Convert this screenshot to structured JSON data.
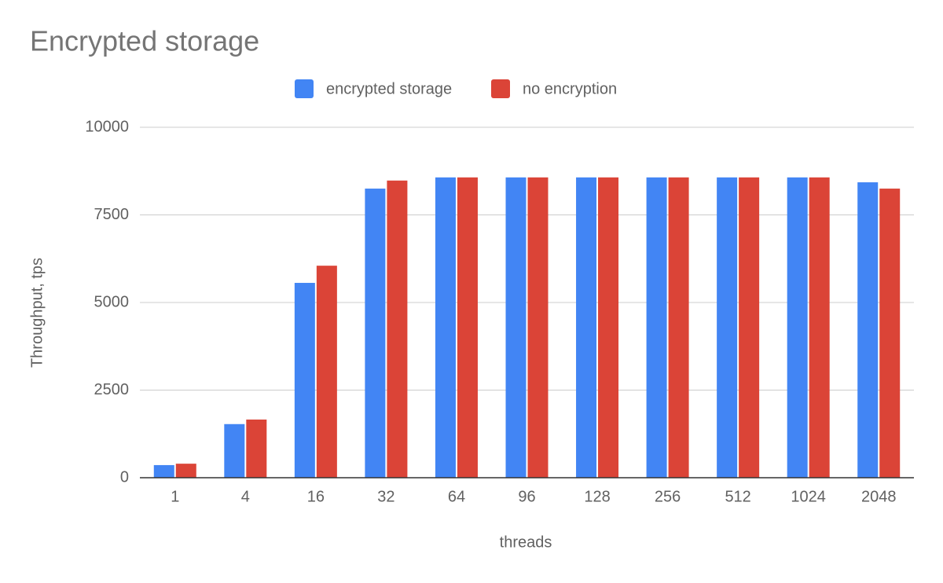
{
  "chart_data": {
    "type": "bar",
    "title": "Encrypted storage",
    "x_label": "threads",
    "y_label": "Throughput, tps",
    "categories": [
      "1",
      "4",
      "16",
      "32",
      "64",
      "96",
      "128",
      "256",
      "512",
      "1024",
      "2048"
    ],
    "series": [
      {
        "name": "encrypted storage",
        "color": "#4285f4",
        "values": [
          360,
          1530,
          5560,
          8250,
          8570,
          8570,
          8570,
          8570,
          8570,
          8570,
          8430
        ]
      },
      {
        "name": "no encryption",
        "color": "#db4437",
        "values": [
          400,
          1660,
          6050,
          8480,
          8570,
          8570,
          8570,
          8570,
          8570,
          8570,
          8250
        ]
      }
    ],
    "ylim": [
      0,
      10000
    ],
    "yticks": [
      0,
      2500,
      5000,
      7500,
      10000
    ],
    "grid": true,
    "legend": "top"
  }
}
